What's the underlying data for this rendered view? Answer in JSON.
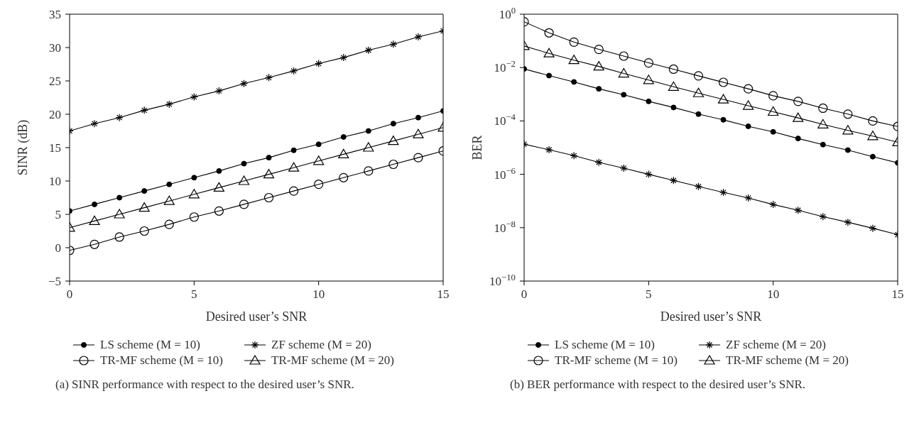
{
  "chart_data": [
    {
      "type": "line",
      "xlabel": "Desired user’s SNR",
      "ylabel": "SINR (dB)",
      "x": [
        0,
        1,
        2,
        3,
        4,
        5,
        6,
        7,
        8,
        9,
        10,
        11,
        12,
        13,
        14,
        15
      ],
      "xlim": [
        0,
        15
      ],
      "xticks": [
        0,
        5,
        10,
        15
      ],
      "ylim": [
        -5,
        35
      ],
      "yticks": [
        {
          "value": -5,
          "label": "−5"
        },
        0,
        5,
        10,
        15,
        20,
        25,
        30,
        35
      ],
      "grid": false,
      "legend": "bottom",
      "line_style": "solid",
      "series": [
        {
          "name": "LS scheme (M = 10)",
          "color": "#000000",
          "marker": "circle",
          "values": [
            5.5,
            6.5,
            7.5,
            8.5,
            9.5,
            10.5,
            11.5,
            12.6,
            13.5,
            14.6,
            15.5,
            16.6,
            17.5,
            18.6,
            19.5,
            20.5
          ]
        },
        {
          "name": "ZF scheme (M = 20)",
          "color": "#000000",
          "marker": "cross",
          "values": [
            17.5,
            18.6,
            19.5,
            20.6,
            21.5,
            22.6,
            23.5,
            24.6,
            25.5,
            26.5,
            27.6,
            28.5,
            29.6,
            30.5,
            31.6,
            32.5
          ]
        },
        {
          "name": "TR-MF scheme (M = 10)",
          "color": "#000000",
          "marker": "circle",
          "values": [
            -0.4,
            0.5,
            1.6,
            2.5,
            3.5,
            4.6,
            5.5,
            6.5,
            7.5,
            8.5,
            9.5,
            10.5,
            11.5,
            12.5,
            13.5,
            14.5
          ]
        },
        {
          "name": "TR-MF scheme (M = 20)",
          "color": "#000000",
          "marker": "triangle",
          "values": [
            3,
            4,
            5,
            6,
            7,
            8,
            9,
            10,
            11,
            12,
            13,
            14,
            15,
            16,
            17,
            18
          ]
        }
      ],
      "annotations": [
        "(a) SINR performance with respect to the desired user’s SNR."
      ]
    },
    {
      "type": "line",
      "xlabel": "Desired user’s SNR",
      "ylabel": "BER",
      "x": [
        0,
        1,
        2,
        3,
        4,
        5,
        6,
        7,
        8,
        9,
        10,
        11,
        12,
        13,
        14,
        15
      ],
      "xlim": [
        0,
        15
      ],
      "xticks": [
        0,
        5,
        10,
        15
      ],
      "log": "y",
      "ylim": [
        1e-10,
        1
      ],
      "yticks": [
        {
          "value": 1e-10,
          "label": "10$^{−10}$"
        },
        {
          "value": 1e-08,
          "label": "10$^{−8}$"
        },
        {
          "value": 1e-06,
          "label": "10$^{−6}$"
        },
        {
          "value": 0.0001,
          "label": "10$^{−4}$"
        },
        {
          "value": 0.01,
          "label": "10$^{−2}$"
        },
        {
          "value": 1,
          "label": "10$^{0}$"
        }
      ],
      "grid": false,
      "legend": "bottom",
      "line_style": "solid",
      "series": [
        {
          "name": "LS scheme (M = 10)",
          "color": "#000000",
          "marker": "circle",
          "values": [
            0.0089,
            0.005,
            0.0029,
            0.0016,
            0.00096,
            0.00054,
            0.00032,
            0.00018,
            0.00011,
            6.3e-05,
            3.9e-05,
            2.2e-05,
            1.3e-05,
            8.1e-06,
            4.6e-06,
            2.7e-06
          ]
        },
        {
          "name": "ZF scheme (M = 20)",
          "color": "#000000",
          "marker": "cross",
          "values": [
            1.35e-05,
            8.3e-06,
            5e-06,
            2.8e-06,
            1.7e-06,
            1e-06,
            5.9e-07,
            3.5e-07,
            2.1e-07,
            1.3e-07,
            7.4e-08,
            4.5e-08,
            2.6e-08,
            1.6e-08,
            9.5e-09,
            5.5e-09
          ]
        },
        {
          "name": "TR-MF scheme (M = 10)",
          "color": "#000000",
          "marker": "circle",
          "values": [
            0.52,
            0.2,
            0.09,
            0.048,
            0.027,
            0.015,
            0.0087,
            0.0049,
            0.0028,
            0.0016,
            0.00088,
            0.00054,
            0.0003,
            0.00018,
            0.0001,
            6.2e-05
          ]
        },
        {
          "name": "TR-MF scheme (M = 20)",
          "color": "#000000",
          "marker": "triangle",
          "values": [
            0.064,
            0.034,
            0.019,
            0.011,
            0.006,
            0.0034,
            0.0019,
            0.0011,
            0.00064,
            0.00037,
            0.00022,
            0.00013,
            7.4e-05,
            4.4e-05,
            2.7e-05,
            1.6e-05
          ]
        }
      ],
      "annotations": [
        "(b) BER performance with respect to the desired user’s SNR."
      ]
    }
  ]
}
